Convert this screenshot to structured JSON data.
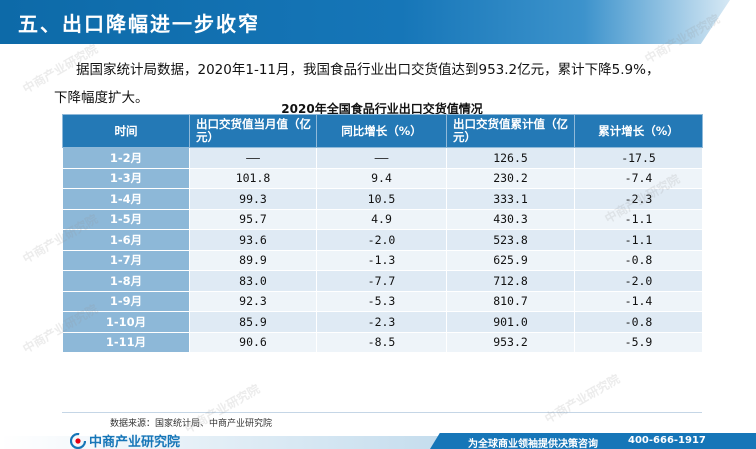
{
  "header": {
    "title": "五、出口降幅进一步收窄"
  },
  "intro": {
    "line1": "据国家统计局数据，2020年1-11月，我国食品行业出口交货值达到953.2亿元，累计下降5.9%，",
    "line2": "下降幅度扩大。"
  },
  "table": {
    "title": "2020年全国食品行业出口交货值情况",
    "headers": {
      "time": "时间",
      "monthly_value": "出口交货值当月值（亿元）",
      "yoy": "同比增长（%）",
      "cumulative_value": "出口交货值累计值（亿元）",
      "cumulative_growth": "累计增长（%）"
    },
    "rows": [
      {
        "time": "1-2月",
        "monthly": "——",
        "yoy": "——",
        "cumulative": "126.5",
        "growth": "-17.5"
      },
      {
        "time": "1-3月",
        "monthly": "101.8",
        "yoy": "9.4",
        "cumulative": "230.2",
        "growth": "-7.4"
      },
      {
        "time": "1-4月",
        "monthly": "99.3",
        "yoy": "10.5",
        "cumulative": "333.1",
        "growth": "-2.3"
      },
      {
        "time": "1-5月",
        "monthly": "95.7",
        "yoy": "4.9",
        "cumulative": "430.3",
        "growth": "-1.1"
      },
      {
        "time": "1-6月",
        "monthly": "93.6",
        "yoy": "-2.0",
        "cumulative": "523.8",
        "growth": "-1.1"
      },
      {
        "time": "1-7月",
        "monthly": "89.9",
        "yoy": "-1.3",
        "cumulative": "625.9",
        "growth": "-0.8"
      },
      {
        "time": "1-8月",
        "monthly": "83.0",
        "yoy": "-7.7",
        "cumulative": "712.8",
        "growth": "-2.0"
      },
      {
        "time": "1-9月",
        "monthly": "92.3",
        "yoy": "-5.3",
        "cumulative": "810.7",
        "growth": "-1.4"
      },
      {
        "time": "1-10月",
        "monthly": "85.9",
        "yoy": "-2.3",
        "cumulative": "901.0",
        "growth": "-0.8"
      },
      {
        "time": "1-11月",
        "monthly": "90.6",
        "yoy": "-8.5",
        "cumulative": "953.2",
        "growth": "-5.9"
      }
    ]
  },
  "footer": {
    "source": "数据来源：国家统计局、中商产业研究院",
    "logo_text": "中商产业研究院",
    "slogan": "为全球商业领袖提供决策咨询",
    "phone": "400-666-1917"
  },
  "watermark": {
    "text": "中商产业研究院"
  },
  "colors": {
    "brand_blue": "#1676b8",
    "header_cell": "#2479b6",
    "row_head": "#8db8d8",
    "row_odd": "#dfeaf4",
    "row_even": "#eef4f9"
  }
}
